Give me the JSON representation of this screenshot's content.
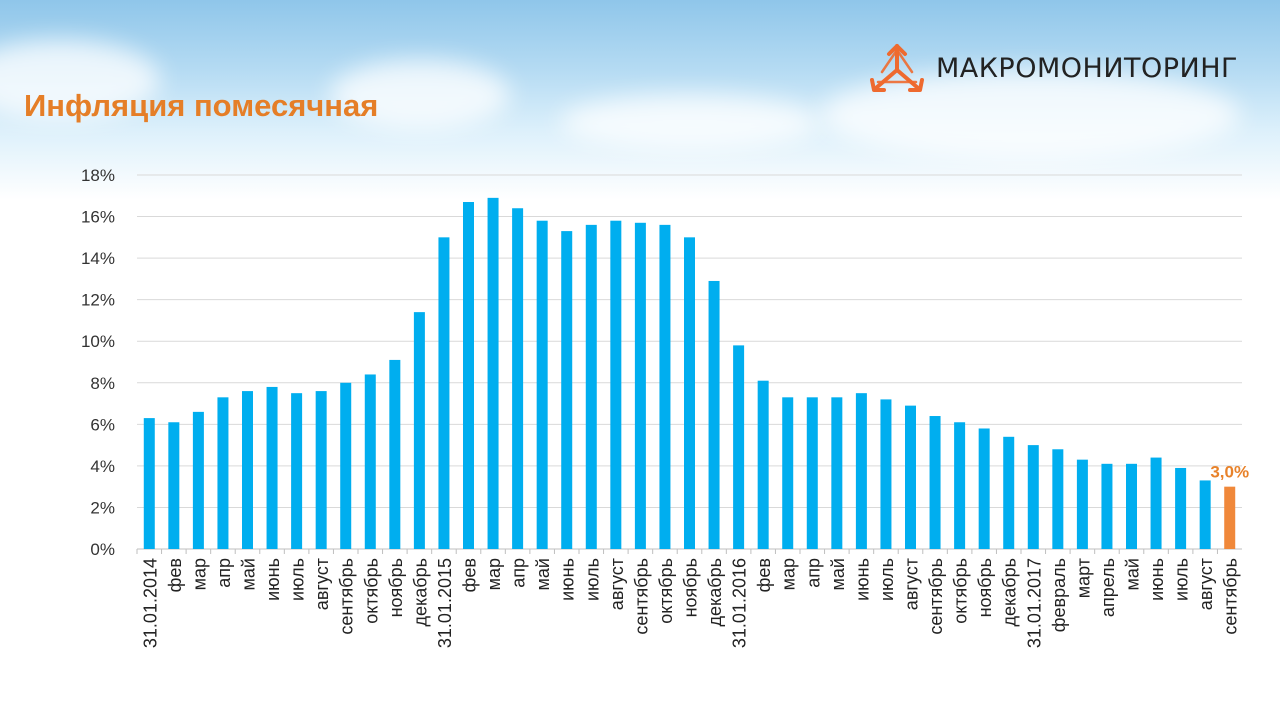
{
  "slide": {
    "title": "Инфляция помесячная",
    "brand": "МАКРОМОНИТОРИНГ",
    "logo_icon": "tri-arrows-logo-icon",
    "colors": {
      "title": "#e57e27",
      "bar": "#00aeef",
      "highlight": "#f0883a",
      "label": "#e8822a"
    }
  },
  "chart_data": {
    "type": "bar",
    "title": "",
    "xlabel": "",
    "ylabel": "",
    "ylim": [
      0,
      18
    ],
    "yticks": [
      "0%",
      "2%",
      "4%",
      "6%",
      "8%",
      "10%",
      "12%",
      "14%",
      "16%",
      "18%"
    ],
    "grid": true,
    "legend": "none",
    "categories": [
      "31.01.2014",
      "фев",
      "мар",
      "апр",
      "май",
      "июнь",
      "июль",
      "август",
      "сентябрь",
      "октябрь",
      "ноябрь",
      "декабрь",
      "31.01.2015",
      "фев",
      "мар",
      "апр",
      "май",
      "июнь",
      "июль",
      "август",
      "сентябрь",
      "октябрь",
      "ноябрь",
      "декабрь",
      "31.01.2016",
      "фев",
      "мар",
      "апр",
      "май",
      "июнь",
      "июль",
      "август",
      "сентябрь",
      "октябрь",
      "ноябрь",
      "декабрь",
      "31.01.2017",
      "февраль",
      "март",
      "апрель",
      "май",
      "июнь",
      "июль",
      "август",
      "сентябрь"
    ],
    "values": [
      6.3,
      6.1,
      6.6,
      7.3,
      7.6,
      7.8,
      7.5,
      7.6,
      8.0,
      8.4,
      9.1,
      11.4,
      15.0,
      16.7,
      16.9,
      16.4,
      15.8,
      15.3,
      15.6,
      15.8,
      15.7,
      15.6,
      15.0,
      12.9,
      9.8,
      8.1,
      7.3,
      7.3,
      7.3,
      7.5,
      7.2,
      6.9,
      6.4,
      6.1,
      5.8,
      5.4,
      5.0,
      4.8,
      4.3,
      4.1,
      4.1,
      4.4,
      3.9,
      3.3,
      3.0
    ],
    "highlight_index": 44,
    "data_labels": [
      {
        "index": 44,
        "text": "3,0%"
      }
    ]
  }
}
